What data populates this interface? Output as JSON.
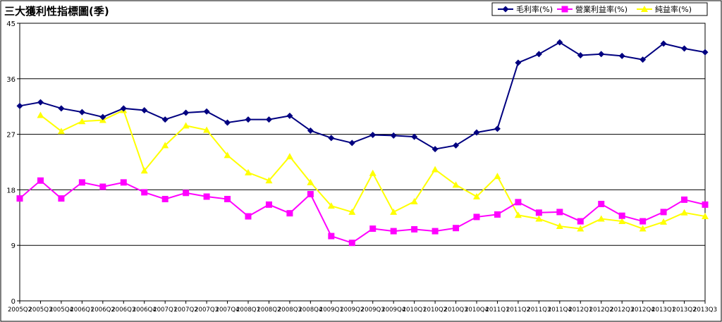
{
  "chart_data": {
    "type": "line",
    "title": "三大獲利性指標圖(季)",
    "xlabel": "",
    "ylabel": "",
    "ylim": [
      0,
      45
    ],
    "yticks": [
      "0",
      "9",
      "18",
      "27",
      "36",
      "45"
    ],
    "grid": true,
    "legend": "top-right",
    "categories": [
      "2005Q2",
      "2005Q3",
      "2005Q4",
      "2006Q1",
      "2006Q2",
      "2006Q3",
      "2006Q4",
      "2007Q1",
      "2007Q2",
      "2007Q3",
      "2007Q4",
      "2008Q1",
      "2008Q2",
      "2008Q3",
      "2008Q4",
      "2009Q1",
      "2009Q2",
      "2009Q3",
      "2009Q4",
      "2010Q1",
      "2010Q2",
      "2010Q3",
      "2010Q4",
      "2011Q1",
      "2011Q2",
      "2011Q3",
      "2011Q4",
      "2012Q1",
      "2012Q2",
      "2012Q3",
      "2012Q4",
      "2013Q1",
      "2013Q2",
      "2013Q3"
    ],
    "series": [
      {
        "name": "毛利率(%)",
        "color": "#000080",
        "marker": "diamond",
        "values": [
          31.6,
          32.2,
          31.2,
          30.6,
          29.8,
          31.2,
          30.9,
          29.4,
          30.5,
          30.7,
          28.9,
          29.4,
          29.4,
          30.0,
          27.6,
          26.4,
          25.6,
          26.9,
          26.8,
          26.6,
          24.6,
          25.2,
          27.3,
          27.9,
          38.6,
          40.0,
          41.9,
          39.8,
          40.0,
          39.7,
          39.1,
          41.7,
          40.9,
          40.3
        ]
      },
      {
        "name": "營業利益率(%)",
        "color": "#ff00ff",
        "marker": "square",
        "values": [
          16.6,
          19.5,
          16.6,
          19.2,
          18.5,
          19.2,
          17.6,
          16.5,
          17.5,
          16.9,
          16.5,
          13.7,
          15.6,
          14.2,
          17.3,
          10.5,
          9.4,
          11.7,
          11.3,
          11.6,
          11.3,
          11.8,
          13.6,
          14.0,
          16.0,
          14.3,
          14.4,
          12.9,
          15.7,
          13.8,
          12.9,
          14.4,
          16.4,
          15.6
        ]
      },
      {
        "name": "純益率(%)",
        "color": "#ffff00",
        "marker": "triangle",
        "values": [
          null,
          30.1,
          27.5,
          29.1,
          29.3,
          30.9,
          21.1,
          25.2,
          28.4,
          27.7,
          23.6,
          20.8,
          19.5,
          23.4,
          19.2,
          15.4,
          14.4,
          20.7,
          14.4,
          16.1,
          21.3,
          18.8,
          16.9,
          20.2,
          13.9,
          13.3,
          12.1,
          11.7,
          13.3,
          12.9,
          11.7,
          12.8,
          14.3,
          13.7
        ]
      }
    ]
  }
}
